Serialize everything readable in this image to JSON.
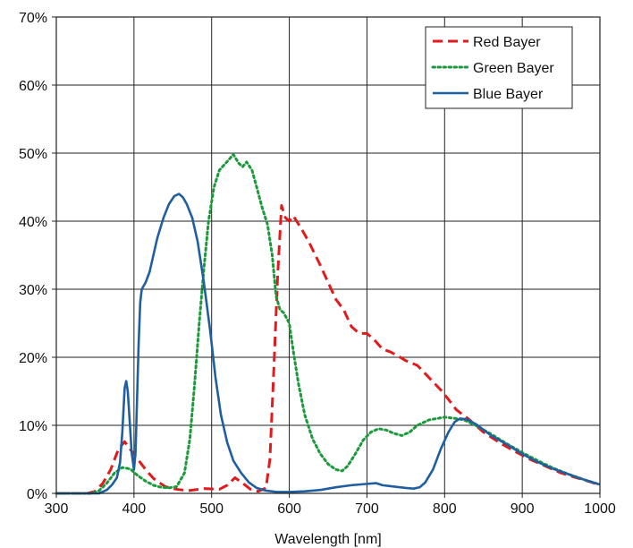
{
  "chart_data": {
    "type": "line",
    "title": "",
    "xlabel": "Wavelength [nm]",
    "ylabel": "",
    "xlim": [
      300,
      1000
    ],
    "ylim": [
      0,
      70
    ],
    "x_ticks": [
      300,
      400,
      500,
      600,
      700,
      800,
      900,
      1000
    ],
    "x_tick_labels": [
      "300",
      "400",
      "500",
      "600",
      "700",
      "800",
      "900",
      "1000"
    ],
    "y_ticks": [
      0,
      10,
      20,
      30,
      40,
      50,
      60,
      70
    ],
    "y_tick_labels": [
      "0%",
      "10%",
      "20%",
      "30%",
      "40%",
      "50%",
      "60%",
      "70%"
    ],
    "grid": true,
    "legend_position": "top-right",
    "series": [
      {
        "name": "Red Bayer",
        "color": "#e31a1c",
        "line_style": "dashed",
        "points": [
          [
            300,
            0
          ],
          [
            340,
            0
          ],
          [
            350,
            0.3
          ],
          [
            360,
            1.5
          ],
          [
            370,
            3.5
          ],
          [
            380,
            6.5
          ],
          [
            388,
            7.6
          ],
          [
            395,
            6.5
          ],
          [
            405,
            5.0
          ],
          [
            415,
            3.5
          ],
          [
            425,
            2.2
          ],
          [
            440,
            1.0
          ],
          [
            455,
            0.6
          ],
          [
            470,
            0.4
          ],
          [
            490,
            0.7
          ],
          [
            510,
            0.6
          ],
          [
            520,
            1.2
          ],
          [
            530,
            2.3
          ],
          [
            540,
            1.5
          ],
          [
            550,
            0.6
          ],
          [
            560,
            0.3
          ],
          [
            570,
            0.8
          ],
          [
            575,
            5
          ],
          [
            580,
            18
          ],
          [
            585,
            32
          ],
          [
            590,
            42.3
          ],
          [
            595,
            40.5
          ],
          [
            600,
            40.0
          ],
          [
            605,
            40.8
          ],
          [
            615,
            39.0
          ],
          [
            625,
            37.0
          ],
          [
            640,
            33.5
          ],
          [
            650,
            31.0
          ],
          [
            660,
            28.5
          ],
          [
            670,
            27.0
          ],
          [
            680,
            24.5
          ],
          [
            690,
            23.5
          ],
          [
            700,
            23.5
          ],
          [
            710,
            22.5
          ],
          [
            720,
            21.2
          ],
          [
            730,
            20.8
          ],
          [
            740,
            20.2
          ],
          [
            750,
            19.5
          ],
          [
            765,
            18.8
          ],
          [
            780,
            17.0
          ],
          [
            795,
            15.2
          ],
          [
            805,
            13.8
          ],
          [
            815,
            12.3
          ],
          [
            830,
            11.0
          ],
          [
            850,
            9.0
          ],
          [
            870,
            7.5
          ],
          [
            890,
            6.2
          ],
          [
            910,
            5.0
          ],
          [
            930,
            4.0
          ],
          [
            950,
            3.0
          ],
          [
            970,
            2.3
          ],
          [
            990,
            1.6
          ],
          [
            1000,
            1.2
          ]
        ]
      },
      {
        "name": "Green Bayer",
        "color": "#1a9a3a",
        "line_style": "dotted",
        "points": [
          [
            300,
            0
          ],
          [
            345,
            0
          ],
          [
            355,
            0.4
          ],
          [
            365,
            1.5
          ],
          [
            375,
            3.0
          ],
          [
            385,
            3.8
          ],
          [
            395,
            3.6
          ],
          [
            405,
            2.6
          ],
          [
            415,
            1.8
          ],
          [
            425,
            1.2
          ],
          [
            435,
            0.9
          ],
          [
            445,
            0.8
          ],
          [
            455,
            1.0
          ],
          [
            465,
            3.0
          ],
          [
            472,
            8.0
          ],
          [
            478,
            16.0
          ],
          [
            484,
            25.0
          ],
          [
            490,
            33.0
          ],
          [
            496,
            40.0
          ],
          [
            503,
            45.0
          ],
          [
            510,
            47.5
          ],
          [
            518,
            48.5
          ],
          [
            528,
            49.8
          ],
          [
            535,
            48.5
          ],
          [
            540,
            48.0
          ],
          [
            545,
            48.7
          ],
          [
            552,
            47.5
          ],
          [
            558,
            45.0
          ],
          [
            565,
            42.0
          ],
          [
            572,
            39.5
          ],
          [
            578,
            35.0
          ],
          [
            583,
            29.0
          ],
          [
            588,
            27.0
          ],
          [
            593,
            26.5
          ],
          [
            600,
            25.0
          ],
          [
            605,
            21.0
          ],
          [
            612,
            16.0
          ],
          [
            620,
            11.5
          ],
          [
            630,
            8.0
          ],
          [
            640,
            5.8
          ],
          [
            650,
            4.3
          ],
          [
            660,
            3.5
          ],
          [
            668,
            3.3
          ],
          [
            675,
            4.0
          ],
          [
            685,
            5.8
          ],
          [
            695,
            7.8
          ],
          [
            705,
            9.0
          ],
          [
            715,
            9.5
          ],
          [
            725,
            9.3
          ],
          [
            735,
            8.8
          ],
          [
            745,
            8.5
          ],
          [
            755,
            9.0
          ],
          [
            765,
            10.0
          ],
          [
            780,
            10.8
          ],
          [
            800,
            11.2
          ],
          [
            815,
            11.0
          ],
          [
            825,
            10.8
          ],
          [
            840,
            10.0
          ],
          [
            860,
            8.7
          ],
          [
            880,
            7.3
          ],
          [
            900,
            6.0
          ],
          [
            920,
            4.8
          ],
          [
            940,
            3.7
          ],
          [
            960,
            2.8
          ],
          [
            980,
            2.0
          ],
          [
            1000,
            1.3
          ]
        ]
      },
      {
        "name": "Blue Bayer",
        "color": "#1f5f9f",
        "line_style": "solid",
        "points": [
          [
            300,
            0
          ],
          [
            355,
            0
          ],
          [
            365,
            0.5
          ],
          [
            372,
            1.3
          ],
          [
            378,
            2.3
          ],
          [
            382,
            4.5
          ],
          [
            385,
            9.0
          ],
          [
            388,
            15.5
          ],
          [
            390,
            16.5
          ],
          [
            392,
            15.0
          ],
          [
            394,
            11.5
          ],
          [
            397,
            6.0
          ],
          [
            400,
            3.5
          ],
          [
            402,
            6.0
          ],
          [
            404,
            14.0
          ],
          [
            406,
            22.0
          ],
          [
            408,
            28.0
          ],
          [
            410,
            30.0
          ],
          [
            415,
            31.0
          ],
          [
            420,
            32.5
          ],
          [
            425,
            35.0
          ],
          [
            430,
            37.5
          ],
          [
            438,
            40.5
          ],
          [
            445,
            42.5
          ],
          [
            452,
            43.7
          ],
          [
            458,
            44.0
          ],
          [
            463,
            43.5
          ],
          [
            468,
            42.5
          ],
          [
            475,
            40.5
          ],
          [
            482,
            37.0
          ],
          [
            490,
            31.0
          ],
          [
            498,
            24.0
          ],
          [
            505,
            17.0
          ],
          [
            512,
            11.5
          ],
          [
            520,
            7.5
          ],
          [
            528,
            4.8
          ],
          [
            538,
            3.0
          ],
          [
            548,
            1.6
          ],
          [
            558,
            0.8
          ],
          [
            570,
            0.4
          ],
          [
            585,
            0.2
          ],
          [
            600,
            0.2
          ],
          [
            620,
            0.3
          ],
          [
            640,
            0.5
          ],
          [
            660,
            0.9
          ],
          [
            680,
            1.2
          ],
          [
            700,
            1.4
          ],
          [
            712,
            1.5
          ],
          [
            720,
            1.2
          ],
          [
            735,
            1.0
          ],
          [
            750,
            0.8
          ],
          [
            760,
            0.7
          ],
          [
            768,
            0.9
          ],
          [
            775,
            1.6
          ],
          [
            785,
            3.5
          ],
          [
            795,
            6.5
          ],
          [
            805,
            9.0
          ],
          [
            813,
            10.5
          ],
          [
            820,
            11.0
          ],
          [
            828,
            10.9
          ],
          [
            840,
            10.2
          ],
          [
            860,
            8.5
          ],
          [
            880,
            7.2
          ],
          [
            900,
            5.8
          ],
          [
            920,
            4.6
          ],
          [
            940,
            3.6
          ],
          [
            960,
            2.8
          ],
          [
            980,
            2.0
          ],
          [
            1000,
            1.3
          ]
        ]
      }
    ]
  }
}
